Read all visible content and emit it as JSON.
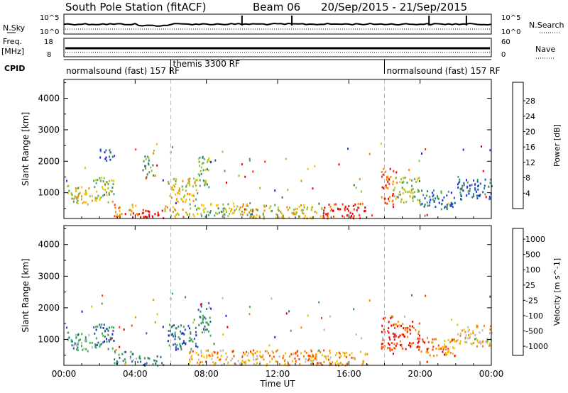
{
  "header": {
    "station": "South Pole Station (fitACF)",
    "beam": "Beam 06",
    "date_range": "20/Sep/2015 - 21/Sep/2015"
  },
  "strip_labels": {
    "nsky": "N.Sky",
    "nsky_ticks": [
      "10^5",
      "10^0"
    ],
    "nsearch": "N.Search",
    "nsearch_ticks": [
      "10^5",
      "10^0"
    ],
    "freq": "Freq.",
    "freq_unit": "[MHz]",
    "freq_ticks": [
      "18",
      "8"
    ],
    "nave": "Nave",
    "nave_ticks": [
      "60",
      "0"
    ],
    "cpid": "CPID"
  },
  "cpid_segments": [
    {
      "label": "normalsound (fast) 157 RF",
      "start_hour": 0,
      "end_hour": 6
    },
    {
      "label": "themis 3300 RF",
      "start_hour": 6,
      "end_hour": 18
    },
    {
      "label": "normalsound (fast) 157 RF",
      "start_hour": 18,
      "end_hour": 24
    }
  ],
  "chart_data": [
    {
      "type": "heatmap",
      "parameter": "power",
      "ylabel": "Slant Range [km]",
      "xlabel": "",
      "x_ticks": [
        "00:00",
        "04:00",
        "08:00",
        "12:00",
        "16:00",
        "20:00",
        "00:00"
      ],
      "xlim_hours": [
        0,
        24
      ],
      "y_ticks": [
        1000,
        2000,
        3000,
        4000
      ],
      "ylim": [
        180,
        4600
      ],
      "colorbar": {
        "label": "Power [dB]",
        "ticks": [
          "4",
          "8",
          "12",
          "16",
          "20",
          "24",
          "28"
        ],
        "range": [
          0,
          30
        ],
        "colors": [
          "#1f1fff",
          "#2050c0",
          "#2f7d6a",
          "#4fa060",
          "#9ac03a",
          "#f0c000",
          "#f08a00",
          "#ff3300",
          "#e80000"
        ]
      },
      "echo_regions": [
        {
          "t0": 0.1,
          "t1": 1.6,
          "r0": 650,
          "r1": 1300,
          "level": 0.55
        },
        {
          "t0": 1.6,
          "t1": 2.8,
          "r0": 700,
          "r1": 1500,
          "level": 0.5
        },
        {
          "t0": 2.0,
          "t1": 2.8,
          "r0": 2000,
          "r1": 2400,
          "level": 0.15
        },
        {
          "t0": 2.8,
          "t1": 4.2,
          "r0": 250,
          "r1": 650,
          "level": 0.8
        },
        {
          "t0": 4.2,
          "t1": 5.6,
          "r0": 200,
          "r1": 500,
          "level": 0.97
        },
        {
          "t0": 4.4,
          "t1": 5.0,
          "r0": 1500,
          "r1": 2200,
          "level": 0.4
        },
        {
          "t0": 5.6,
          "t1": 7.0,
          "r0": 250,
          "r1": 600,
          "level": 0.65
        },
        {
          "t0": 5.8,
          "t1": 7.5,
          "r0": 700,
          "r1": 1500,
          "level": 0.6
        },
        {
          "t0": 7.5,
          "t1": 8.2,
          "r0": 1200,
          "r1": 2200,
          "level": 0.45
        },
        {
          "t0": 7.0,
          "t1": 9.5,
          "r0": 250,
          "r1": 700,
          "level": 0.5
        },
        {
          "t0": 9.5,
          "t1": 12.0,
          "r0": 200,
          "r1": 700,
          "level": 0.55
        },
        {
          "t0": 12.0,
          "t1": 14.5,
          "r0": 200,
          "r1": 650,
          "level": 0.6
        },
        {
          "t0": 14.5,
          "t1": 17.0,
          "r0": 200,
          "r1": 700,
          "level": 0.9
        },
        {
          "t0": 17.8,
          "t1": 18.5,
          "r0": 650,
          "r1": 1800,
          "level": 0.85
        },
        {
          "t0": 18.5,
          "t1": 20.0,
          "r0": 700,
          "r1": 1600,
          "level": 0.5
        },
        {
          "t0": 20.0,
          "t1": 22.0,
          "r0": 500,
          "r1": 1100,
          "level": 0.25
        },
        {
          "t0": 22.0,
          "t1": 24.0,
          "r0": 800,
          "r1": 1500,
          "level": 0.2
        }
      ]
    },
    {
      "type": "heatmap",
      "parameter": "velocity",
      "ylabel": "Slant Range [km]",
      "xlabel": "Time UT",
      "x_ticks": [
        "00:00",
        "04:00",
        "08:00",
        "12:00",
        "16:00",
        "20:00",
        "00:00"
      ],
      "xlim_hours": [
        0,
        24
      ],
      "y_ticks": [
        1000,
        2000,
        3000,
        4000
      ],
      "ylim": [
        180,
        4600
      ],
      "colorbar": {
        "label": "Velocity [m s^-1]",
        "ticks": [
          "1000",
          "500",
          "100",
          "25",
          "-25",
          "-100",
          "-500",
          "-1000"
        ],
        "colors": [
          "#2020c0",
          "#2a5aa8",
          "#2f8a70",
          "#3cb04a",
          "#b8b8b8",
          "#f0c000",
          "#f08a00",
          "#ff4000",
          "#e80000"
        ]
      },
      "echo_regions": [
        {
          "t0": 0.1,
          "t1": 1.6,
          "r0": 650,
          "r1": 1300,
          "level": 0.35
        },
        {
          "t0": 1.6,
          "t1": 2.8,
          "r0": 700,
          "r1": 1500,
          "level": 0.25
        },
        {
          "t0": 2.8,
          "t1": 4.2,
          "r0": 250,
          "r1": 650,
          "level": 0.35
        },
        {
          "t0": 4.2,
          "t1": 5.6,
          "r0": 200,
          "r1": 500,
          "level": 0.3
        },
        {
          "t0": 5.8,
          "t1": 7.5,
          "r0": 700,
          "r1": 1500,
          "level": 0.25
        },
        {
          "t0": 7.5,
          "t1": 8.2,
          "r0": 1200,
          "r1": 2200,
          "level": 0.3
        },
        {
          "t0": 7.0,
          "t1": 12.0,
          "r0": 200,
          "r1": 700,
          "level": 0.65
        },
        {
          "t0": 12.0,
          "t1": 17.0,
          "r0": 200,
          "r1": 700,
          "level": 0.7
        },
        {
          "t0": 17.8,
          "t1": 18.5,
          "r0": 650,
          "r1": 1800,
          "level": 0.9
        },
        {
          "t0": 18.5,
          "t1": 20.0,
          "r0": 700,
          "r1": 1600,
          "level": 0.88
        },
        {
          "t0": 20.0,
          "t1": 22.0,
          "r0": 500,
          "r1": 1100,
          "level": 0.75
        },
        {
          "t0": 22.0,
          "t1": 24.0,
          "r0": 800,
          "r1": 1500,
          "level": 0.6
        }
      ]
    }
  ]
}
